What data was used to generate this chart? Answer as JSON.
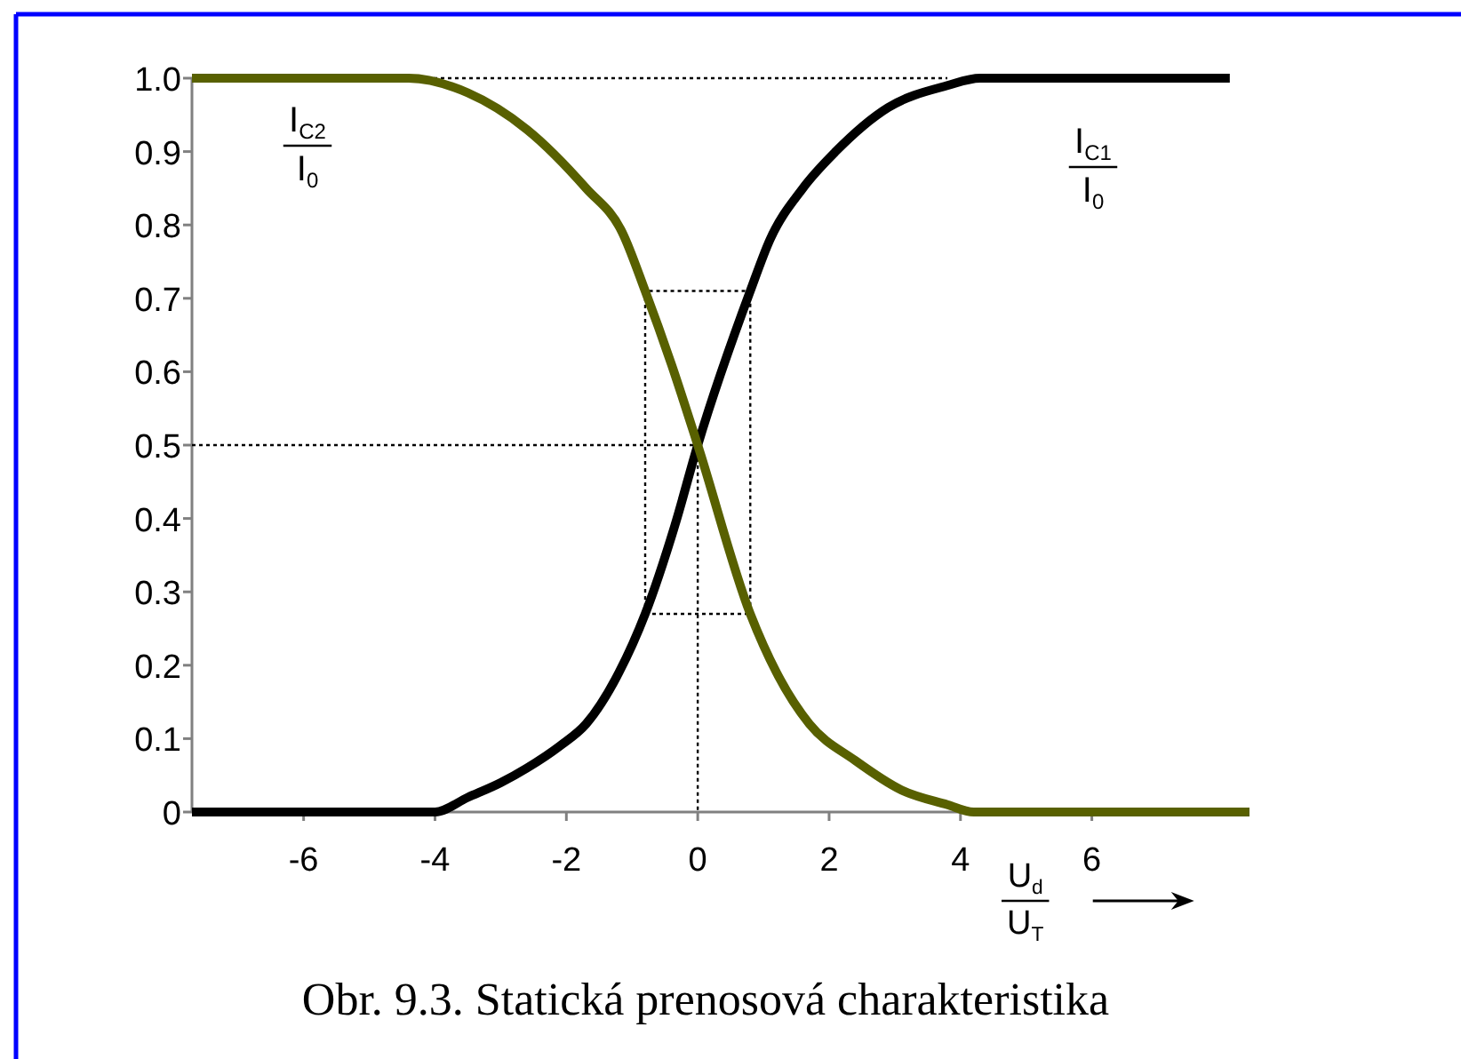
{
  "chart_data": {
    "type": "line",
    "annotations": [
      "Obr. 9.3. Statická prenosová charakteristika"
    ],
    "xlabel": "U$_{d}$\nU$_{T}$",
    "xlim": [
      -7.7,
      8.4
    ],
    "xticks": [
      -6,
      -4,
      -2,
      0,
      2,
      4,
      6
    ],
    "ylim": [
      0,
      1
    ],
    "yticks": [
      0,
      0.1,
      0.2,
      0.3,
      0.4,
      0.5,
      0.6,
      0.7,
      0.8,
      0.9,
      {
        "value": 1,
        "label": "1.0"
      }
    ],
    "series": [
      {
        "color": "#000000",
        "line_style": "dotted",
        "x": [
          -7.7,
          3.8
        ],
        "values": [
          1,
          1
        ]
      },
      {
        "color": "#000000",
        "line_style": "dotted",
        "x": [
          -7.7,
          0,
          0
        ],
        "values": [
          0.5,
          0.5,
          0
        ]
      },
      {
        "color": "#000000",
        "line_style": "dotted",
        "x": [
          -0.8,
          -0.8,
          0.8,
          0.8
        ],
        "values": [
          0.27,
          0.71,
          0.71,
          0.27
        ]
      },
      {
        "color": "#000000",
        "line_style": "dotted",
        "x": [
          -0.8,
          0.8
        ],
        "values": [
          0.27,
          0.27
        ]
      },
      {
        "name": "I$_{C1}$\nI$_{0}$",
        "color": "#000000",
        "x": [
          -7.7,
          -4.0,
          -3.5,
          -3.0,
          -2.6,
          -2.1,
          -1.7,
          -1.2,
          -0.8,
          -0.35,
          0,
          0.8,
          1.1,
          1.6,
          2.1,
          2.9,
          3.8,
          4.3,
          8.1
        ],
        "values": [
          0,
          0,
          0.02,
          0.04,
          0.06,
          0.09,
          0.12,
          0.19,
          0.27,
          0.39,
          0.5,
          0.71,
          0.78,
          0.85,
          0.9,
          0.96,
          0.99,
          1,
          1
        ]
      },
      {
        "name": "I$_{C2}$\nI$_{0}$",
        "color": "#586000",
        "x": [
          -7.7,
          -4.4,
          -3.5,
          -2.6,
          -1.7,
          -1.15,
          -0.8,
          -0.4,
          0,
          0.8,
          1.2,
          1.7,
          2.4,
          3.1,
          3.8,
          4.2,
          8.4
        ],
        "values": [
          1,
          1,
          0.98,
          0.93,
          0.85,
          0.79,
          0.71,
          0.61,
          0.5,
          0.27,
          0.19,
          0.12,
          0.07,
          0.03,
          0.01,
          0,
          0
        ]
      }
    ]
  }
}
